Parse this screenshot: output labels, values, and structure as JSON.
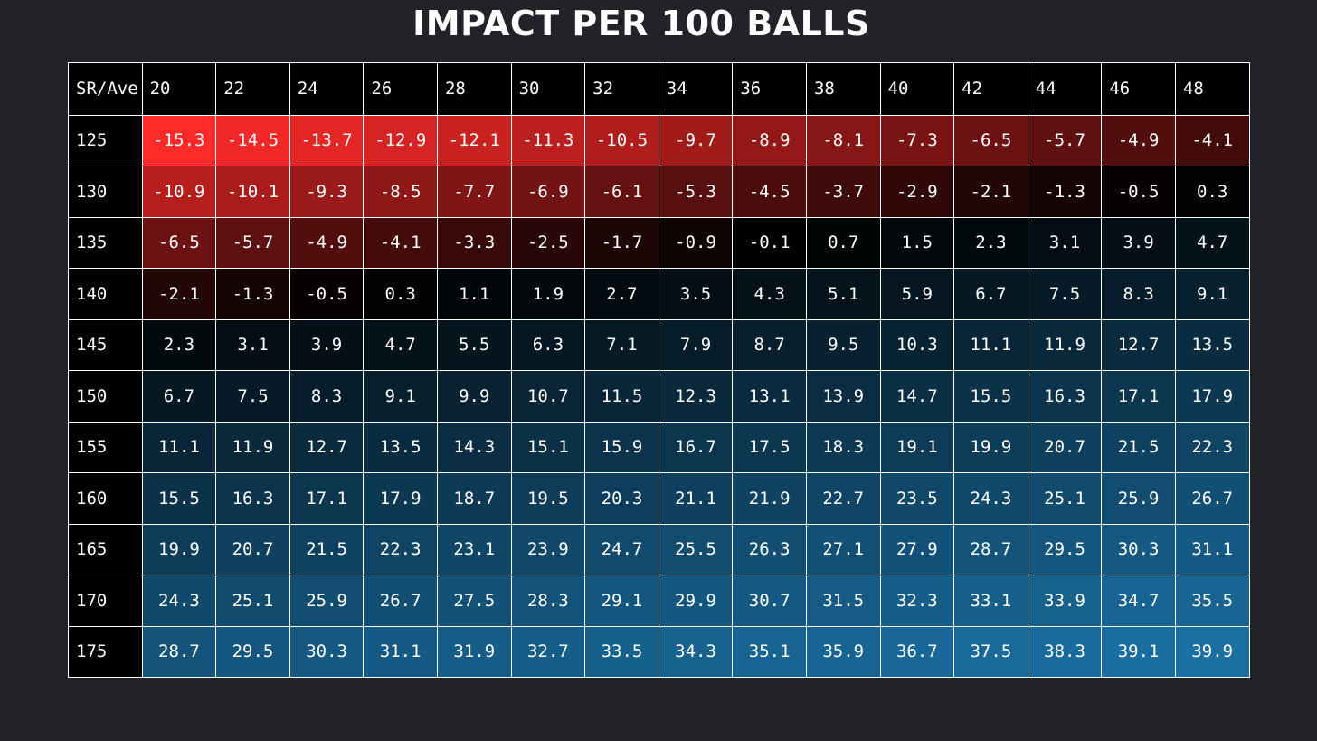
{
  "title": "IMPACT PER 100 BALLS",
  "colors": {
    "background": "#222328",
    "negative": "#ff2a2a",
    "zero": "#000000",
    "positive": "#1a6fa3",
    "grid_lines": "#ffffff",
    "text": "#ffffff"
  },
  "chart_data": {
    "type": "heatmap",
    "title": "IMPACT PER 100 BALLS",
    "corner_label": "SR/Ave",
    "columns": [
      "20",
      "22",
      "24",
      "26",
      "28",
      "30",
      "32",
      "34",
      "36",
      "38",
      "40",
      "42",
      "44",
      "46",
      "48"
    ],
    "rows": [
      "125",
      "130",
      "135",
      "140",
      "145",
      "150",
      "155",
      "160",
      "165",
      "170",
      "175"
    ],
    "values": [
      [
        "-15.3",
        "-14.5",
        "-13.7",
        "-12.9",
        "-12.1",
        "-11.3",
        "-10.5",
        "-9.7",
        "-8.9",
        "-8.1",
        "-7.3",
        "-6.5",
        "-5.7",
        "-4.9",
        "-4.1"
      ],
      [
        "-10.9",
        "-10.1",
        "-9.3",
        "-8.5",
        "-7.7",
        "-6.9",
        "-6.1",
        "-5.3",
        "-4.5",
        "-3.7",
        "-2.9",
        "-2.1",
        "-1.3",
        "-0.5",
        "0.3"
      ],
      [
        "-6.5",
        "-5.7",
        "-4.9",
        "-4.1",
        "-3.3",
        "-2.5",
        "-1.7",
        "-0.9",
        "-0.1",
        "0.7",
        "1.5",
        "2.3",
        "3.1",
        "3.9",
        "4.7"
      ],
      [
        "-2.1",
        "-1.3",
        "-0.5",
        "0.3",
        "1.1",
        "1.9",
        "2.7",
        "3.5",
        "4.3",
        "5.1",
        "5.9",
        "6.7",
        "7.5",
        "8.3",
        "9.1"
      ],
      [
        "2.3",
        "3.1",
        "3.9",
        "4.7",
        "5.5",
        "6.3",
        "7.1",
        "7.9",
        "8.7",
        "9.5",
        "10.3",
        "11.1",
        "11.9",
        "12.7",
        "13.5"
      ],
      [
        "6.7",
        "7.5",
        "8.3",
        "9.1",
        "9.9",
        "10.7",
        "11.5",
        "12.3",
        "13.1",
        "13.9",
        "14.7",
        "15.5",
        "16.3",
        "17.1",
        "17.9"
      ],
      [
        "11.1",
        "11.9",
        "12.7",
        "13.5",
        "14.3",
        "15.1",
        "15.9",
        "16.7",
        "17.5",
        "18.3",
        "19.1",
        "19.9",
        "20.7",
        "21.5",
        "22.3"
      ],
      [
        "15.5",
        "16.3",
        "17.1",
        "17.9",
        "18.7",
        "19.5",
        "20.3",
        "21.1",
        "21.9",
        "22.7",
        "23.5",
        "24.3",
        "25.1",
        "25.9",
        "26.7"
      ],
      [
        "19.9",
        "20.7",
        "21.5",
        "22.3",
        "23.1",
        "23.9",
        "24.7",
        "25.5",
        "26.3",
        "27.1",
        "27.9",
        "28.7",
        "29.5",
        "30.3",
        "31.1"
      ],
      [
        "24.3",
        "25.1",
        "25.9",
        "26.7",
        "27.5",
        "28.3",
        "29.1",
        "29.9",
        "30.7",
        "31.5",
        "32.3",
        "33.1",
        "33.9",
        "34.7",
        "35.5"
      ],
      [
        "28.7",
        "29.5",
        "30.3",
        "31.1",
        "31.9",
        "32.7",
        "33.5",
        "34.3",
        "35.1",
        "35.9",
        "36.7",
        "37.5",
        "38.3",
        "39.1",
        "39.9"
      ]
    ],
    "color_scale": {
      "min": -15.3,
      "mid": 0,
      "max": 39.9
    }
  }
}
